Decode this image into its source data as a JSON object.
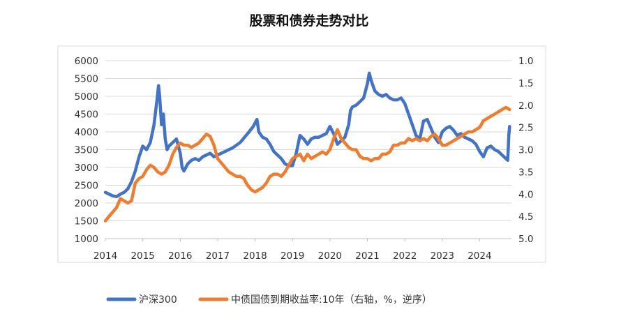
{
  "chart_data": {
    "type": "line",
    "title": "股票和债券走势对比",
    "x_ticks": [
      "2014",
      "2015",
      "2016",
      "2017",
      "2018",
      "2019",
      "2020",
      "2021",
      "2022",
      "2023",
      "2024"
    ],
    "xlim": [
      2014.0,
      2024.85
    ],
    "y_left": {
      "lim": [
        1000,
        6000
      ],
      "ticks": [
        "6000",
        "5500",
        "5000",
        "4500",
        "4000",
        "3500",
        "3000",
        "2500",
        "2000",
        "1500",
        "1000"
      ]
    },
    "y_right": {
      "lim": [
        1.0,
        5.0
      ],
      "inverted": true,
      "ticks": [
        "1.0",
        "1.5",
        "2.0",
        "2.5",
        "3.0",
        "3.5",
        "4.0",
        "4.5",
        "5.0"
      ]
    },
    "legend_position": "bottom",
    "series": [
      {
        "name": "沪深300",
        "axis": "left",
        "color": "#4472C4",
        "x": [
          2014.0,
          2014.1,
          2014.2,
          2014.3,
          2014.4,
          2014.5,
          2014.6,
          2014.7,
          2014.8,
          2014.9,
          2015.0,
          2015.1,
          2015.2,
          2015.3,
          2015.38,
          2015.42,
          2015.45,
          2015.5,
          2015.55,
          2015.6,
          2015.65,
          2015.7,
          2015.8,
          2015.9,
          2016.0,
          2016.05,
          2016.1,
          2016.2,
          2016.3,
          2016.4,
          2016.5,
          2016.6,
          2016.7,
          2016.8,
          2016.9,
          2017.0,
          2017.2,
          2017.4,
          2017.6,
          2017.8,
          2017.95,
          2018.05,
          2018.1,
          2018.2,
          2018.3,
          2018.4,
          2018.5,
          2018.6,
          2018.7,
          2018.8,
          2018.9,
          2019.0,
          2019.1,
          2019.2,
          2019.3,
          2019.4,
          2019.5,
          2019.6,
          2019.7,
          2019.8,
          2019.9,
          2020.0,
          2020.1,
          2020.2,
          2020.3,
          2020.4,
          2020.5,
          2020.55,
          2020.6,
          2020.7,
          2020.8,
          2020.9,
          2021.0,
          2021.05,
          2021.1,
          2021.15,
          2021.2,
          2021.3,
          2021.4,
          2021.5,
          2021.6,
          2021.7,
          2021.8,
          2021.9,
          2022.0,
          2022.1,
          2022.2,
          2022.3,
          2022.4,
          2022.5,
          2022.6,
          2022.7,
          2022.8,
          2022.9,
          2023.0,
          2023.1,
          2023.2,
          2023.3,
          2023.4,
          2023.5,
          2023.6,
          2023.7,
          2023.8,
          2023.9,
          2024.0,
          2024.1,
          2024.2,
          2024.3,
          2024.4,
          2024.5,
          2024.6,
          2024.7,
          2024.75,
          2024.78,
          2024.8
        ],
        "values": [
          2300,
          2250,
          2200,
          2180,
          2250,
          2300,
          2400,
          2600,
          2900,
          3300,
          3600,
          3500,
          3700,
          4200,
          4900,
          5300,
          5000,
          4200,
          4500,
          3800,
          3500,
          3600,
          3700,
          3800,
          3400,
          3000,
          2900,
          3100,
          3200,
          3250,
          3200,
          3300,
          3350,
          3400,
          3300,
          3350,
          3450,
          3550,
          3700,
          3950,
          4150,
          4350,
          4000,
          3850,
          3800,
          3650,
          3450,
          3350,
          3250,
          3100,
          3050,
          3050,
          3400,
          3900,
          3800,
          3650,
          3800,
          3850,
          3850,
          3900,
          3950,
          4150,
          3950,
          3650,
          3750,
          3850,
          4200,
          4600,
          4700,
          4750,
          4850,
          4950,
          5350,
          5650,
          5450,
          5300,
          5150,
          5050,
          5000,
          5050,
          4950,
          4900,
          4900,
          4950,
          4800,
          4500,
          4200,
          3900,
          3800,
          4300,
          4350,
          4100,
          3850,
          3700,
          4000,
          4100,
          4150,
          4050,
          3900,
          3950,
          3850,
          3800,
          3750,
          3650,
          3450,
          3300,
          3550,
          3600,
          3500,
          3450,
          3350,
          3250,
          3200,
          3900,
          4150
        ]
      },
      {
        "name": "中债国债到期收益率:10年（右轴，%，逆序）",
        "axis": "right",
        "color": "#ED7D31",
        "x": [
          2014.0,
          2014.1,
          2014.2,
          2014.3,
          2014.4,
          2014.5,
          2014.6,
          2014.7,
          2014.8,
          2014.9,
          2015.0,
          2015.1,
          2015.2,
          2015.3,
          2015.4,
          2015.5,
          2015.6,
          2015.7,
          2015.8,
          2015.9,
          2016.0,
          2016.1,
          2016.2,
          2016.3,
          2016.4,
          2016.5,
          2016.6,
          2016.7,
          2016.8,
          2016.9,
          2017.0,
          2017.1,
          2017.2,
          2017.3,
          2017.4,
          2017.5,
          2017.6,
          2017.7,
          2017.8,
          2017.9,
          2018.0,
          2018.1,
          2018.2,
          2018.3,
          2018.4,
          2018.5,
          2018.6,
          2018.7,
          2018.8,
          2018.9,
          2019.0,
          2019.1,
          2019.2,
          2019.3,
          2019.4,
          2019.5,
          2019.6,
          2019.7,
          2019.8,
          2019.9,
          2020.0,
          2020.1,
          2020.2,
          2020.3,
          2020.4,
          2020.5,
          2020.6,
          2020.7,
          2020.8,
          2020.9,
          2021.0,
          2021.1,
          2021.2,
          2021.3,
          2021.4,
          2021.5,
          2021.6,
          2021.7,
          2021.8,
          2021.9,
          2022.0,
          2022.1,
          2022.2,
          2022.3,
          2022.4,
          2022.5,
          2022.6,
          2022.7,
          2022.8,
          2022.9,
          2023.0,
          2023.1,
          2023.2,
          2023.3,
          2023.4,
          2023.5,
          2023.6,
          2023.7,
          2023.8,
          2023.9,
          2024.0,
          2024.1,
          2024.2,
          2024.3,
          2024.4,
          2024.5,
          2024.6,
          2024.7,
          2024.8
        ],
        "values": [
          4.6,
          4.5,
          4.4,
          4.3,
          4.1,
          4.15,
          4.2,
          4.15,
          3.75,
          3.65,
          3.6,
          3.45,
          3.35,
          3.4,
          3.5,
          3.55,
          3.5,
          3.35,
          3.1,
          2.95,
          2.85,
          2.9,
          2.9,
          2.95,
          2.9,
          2.85,
          2.75,
          2.65,
          2.7,
          2.9,
          3.2,
          3.3,
          3.4,
          3.5,
          3.55,
          3.6,
          3.6,
          3.65,
          3.8,
          3.9,
          3.95,
          3.9,
          3.85,
          3.75,
          3.6,
          3.55,
          3.55,
          3.6,
          3.5,
          3.35,
          3.2,
          3.15,
          3.1,
          3.25,
          3.1,
          3.2,
          3.15,
          3.1,
          3.05,
          3.1,
          3.0,
          2.75,
          2.55,
          2.75,
          2.85,
          2.95,
          3.0,
          3.0,
          3.15,
          3.2,
          3.2,
          3.25,
          3.2,
          3.2,
          3.1,
          3.1,
          3.05,
          2.9,
          2.9,
          2.85,
          2.85,
          2.75,
          2.8,
          2.75,
          2.8,
          2.75,
          2.8,
          2.7,
          2.65,
          2.75,
          2.9,
          2.9,
          2.85,
          2.8,
          2.75,
          2.7,
          2.65,
          2.6,
          2.6,
          2.55,
          2.5,
          2.35,
          2.3,
          2.25,
          2.2,
          2.15,
          2.1,
          2.05,
          2.1
        ]
      }
    ]
  }
}
